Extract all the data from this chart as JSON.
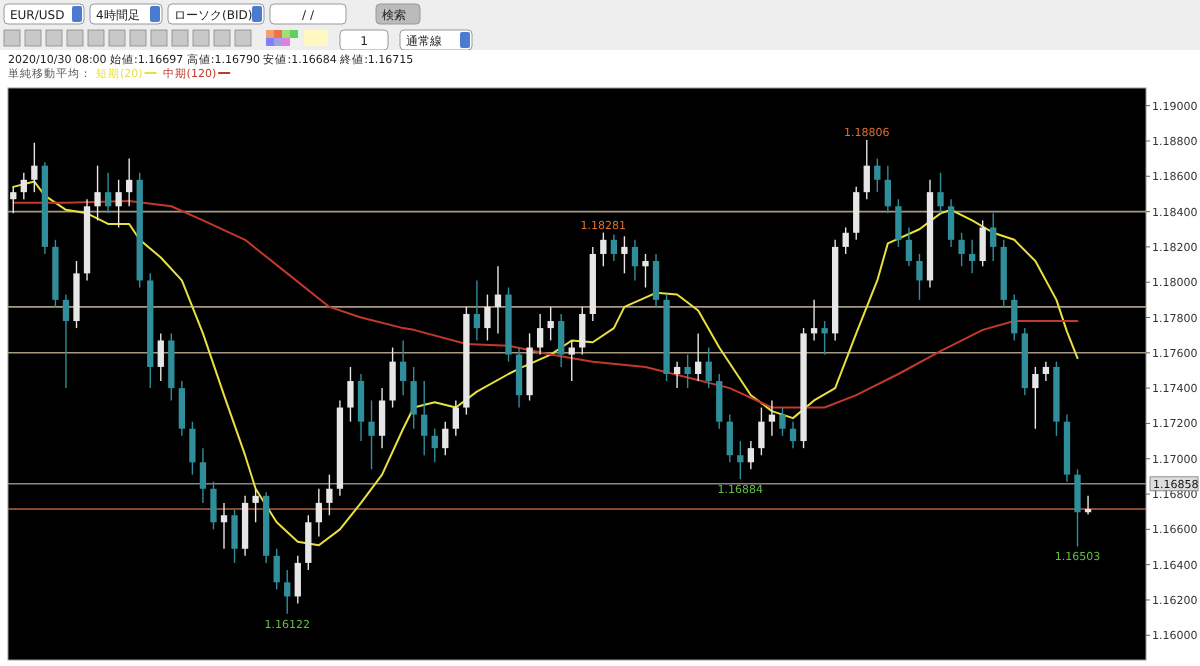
{
  "chart_data": {
    "type": "candlestick",
    "title": "2020/10/30 08:00 始値:1.16697 高値:1.16790 安値:1.16684 終値:1.16715",
    "subtitle": "単純移動平均：",
    "legend": "top left",
    "tick_labels": "y",
    "categories": [
      null,
      null,
      null,
      null,
      null,
      null,
      null,
      null,
      null,
      null,
      null,
      null,
      null,
      null,
      null,
      null,
      null,
      null,
      null,
      null,
      null,
      null,
      null,
      null,
      null,
      null,
      null,
      null,
      null,
      null,
      null,
      null,
      null,
      null,
      null,
      null,
      null,
      null,
      null,
      null,
      null,
      null,
      null,
      null,
      null,
      null,
      null,
      null,
      null,
      null,
      null,
      null,
      null,
      null,
      null,
      null,
      null,
      null,
      null,
      null,
      null,
      null,
      null,
      null,
      null,
      null,
      null,
      null,
      null,
      null,
      null,
      null,
      null,
      null,
      null,
      null,
      null,
      null,
      null,
      null,
      null,
      null,
      null,
      null,
      null,
      null,
      null,
      null,
      null,
      null,
      null,
      null,
      null,
      null,
      null,
      null,
      null,
      null,
      null,
      null,
      null,
      null,
      null,
      null,
      null,
      null,
      null,
      null
    ],
    "ohlc": [
      [
        1.1847,
        1.1854,
        1.1839,
        1.1851
      ],
      [
        1.1851,
        1.1862,
        1.1847,
        1.1858
      ],
      [
        1.1858,
        1.1879,
        1.1851,
        1.1866
      ],
      [
        1.1866,
        1.1868,
        1.1816,
        1.182
      ],
      [
        1.182,
        1.1824,
        1.1786,
        1.179
      ],
      [
        1.179,
        1.1793,
        1.174,
        1.1778
      ],
      [
        1.1778,
        1.1812,
        1.1774,
        1.1805
      ],
      [
        1.1805,
        1.1847,
        1.1801,
        1.1843
      ],
      [
        1.1843,
        1.1866,
        1.1835,
        1.1851
      ],
      [
        1.1851,
        1.1862,
        1.1839,
        1.1843
      ],
      [
        1.1843,
        1.1858,
        1.1831,
        1.1851
      ],
      [
        1.1851,
        1.187,
        1.1843,
        1.1858
      ],
      [
        1.1858,
        1.1862,
        1.1797,
        1.1801
      ],
      [
        1.1801,
        1.1805,
        1.174,
        1.1752
      ],
      [
        1.1752,
        1.1771,
        1.1744,
        1.1767
      ],
      [
        1.1767,
        1.1771,
        1.1733,
        1.174
      ],
      [
        1.174,
        1.1744,
        1.1713,
        1.1717
      ],
      [
        1.1717,
        1.1721,
        1.1691,
        1.1698
      ],
      [
        1.1698,
        1.1706,
        1.1675,
        1.1683
      ],
      [
        1.1683,
        1.1687,
        1.166,
        1.1664
      ],
      [
        1.1664,
        1.1675,
        1.1649,
        1.1668
      ],
      [
        1.1668,
        1.1671,
        1.1641,
        1.1649
      ],
      [
        1.1649,
        1.1679,
        1.1645,
        1.1675
      ],
      [
        1.1675,
        1.1683,
        1.1664,
        1.1679
      ],
      [
        1.1679,
        1.1681,
        1.1641,
        1.1645
      ],
      [
        1.1645,
        1.1649,
        1.1626,
        1.163
      ],
      [
        1.163,
        1.1637,
        1.16122,
        1.1622
      ],
      [
        1.1622,
        1.1645,
        1.1618,
        1.1641
      ],
      [
        1.1641,
        1.1668,
        1.1637,
        1.1664
      ],
      [
        1.1664,
        1.1683,
        1.1656,
        1.1675
      ],
      [
        1.1675,
        1.1691,
        1.1668,
        1.1683
      ],
      [
        1.1683,
        1.1733,
        1.1679,
        1.1729
      ],
      [
        1.1729,
        1.1752,
        1.1721,
        1.1744
      ],
      [
        1.1744,
        1.1748,
        1.171,
        1.1721
      ],
      [
        1.1721,
        1.1733,
        1.1694,
        1.1713
      ],
      [
        1.1713,
        1.174,
        1.1706,
        1.1733
      ],
      [
        1.1733,
        1.1763,
        1.1729,
        1.1755
      ],
      [
        1.1755,
        1.1767,
        1.1736,
        1.1744
      ],
      [
        1.1744,
        1.1752,
        1.1717,
        1.1725
      ],
      [
        1.1725,
        1.1744,
        1.1702,
        1.1713
      ],
      [
        1.1713,
        1.1717,
        1.1698,
        1.1706
      ],
      [
        1.1706,
        1.1721,
        1.1702,
        1.1717
      ],
      [
        1.1717,
        1.1733,
        1.1713,
        1.1729
      ],
      [
        1.1729,
        1.1786,
        1.1725,
        1.1782
      ],
      [
        1.1782,
        1.1801,
        1.1767,
        1.1774
      ],
      [
        1.1774,
        1.1793,
        1.1767,
        1.1786
      ],
      [
        1.1786,
        1.1809,
        1.1771,
        1.1793
      ],
      [
        1.1793,
        1.1797,
        1.1755,
        1.1759
      ],
      [
        1.1759,
        1.1763,
        1.1729,
        1.1736
      ],
      [
        1.1736,
        1.1771,
        1.1733,
        1.1763
      ],
      [
        1.1763,
        1.1782,
        1.1759,
        1.1774
      ],
      [
        1.1774,
        1.1786,
        1.1767,
        1.1778
      ],
      [
        1.1778,
        1.1782,
        1.1752,
        1.1759
      ],
      [
        1.1759,
        1.1767,
        1.1744,
        1.1763
      ],
      [
        1.1763,
        1.1786,
        1.1759,
        1.1782
      ],
      [
        1.1782,
        1.182,
        1.1778,
        1.1816
      ],
      [
        1.1816,
        1.18281,
        1.1809,
        1.1824
      ],
      [
        1.1824,
        1.1827,
        1.1812,
        1.1816
      ],
      [
        1.1816,
        1.1826,
        1.1805,
        1.182
      ],
      [
        1.182,
        1.1824,
        1.1801,
        1.1809
      ],
      [
        1.1809,
        1.1816,
        1.1797,
        1.1812
      ],
      [
        1.1812,
        1.1816,
        1.1786,
        1.179
      ],
      [
        1.179,
        1.1793,
        1.1744,
        1.1748
      ],
      [
        1.1748,
        1.1755,
        1.174,
        1.1752
      ],
      [
        1.1752,
        1.1759,
        1.174,
        1.1748
      ],
      [
        1.1748,
        1.1771,
        1.1744,
        1.1755
      ],
      [
        1.1755,
        1.1763,
        1.174,
        1.1744
      ],
      [
        1.1744,
        1.1748,
        1.1717,
        1.1721
      ],
      [
        1.1721,
        1.1725,
        1.1698,
        1.1702
      ],
      [
        1.1702,
        1.171,
        1.16884,
        1.1698
      ],
      [
        1.1698,
        1.171,
        1.1694,
        1.1706
      ],
      [
        1.1706,
        1.1729,
        1.1702,
        1.1721
      ],
      [
        1.1721,
        1.1733,
        1.1713,
        1.1725
      ],
      [
        1.1725,
        1.1729,
        1.1713,
        1.1717
      ],
      [
        1.1717,
        1.1721,
        1.1706,
        1.171
      ],
      [
        1.171,
        1.1774,
        1.1706,
        1.1771
      ],
      [
        1.1771,
        1.179,
        1.1767,
        1.1774
      ],
      [
        1.1774,
        1.1778,
        1.1759,
        1.1771
      ],
      [
        1.1771,
        1.1824,
        1.1767,
        1.182
      ],
      [
        1.182,
        1.1831,
        1.1816,
        1.1828
      ],
      [
        1.1828,
        1.1854,
        1.1824,
        1.1851
      ],
      [
        1.1851,
        1.18806,
        1.1847,
        1.1866
      ],
      [
        1.1866,
        1.187,
        1.1851,
        1.1858
      ],
      [
        1.1858,
        1.1866,
        1.1839,
        1.1843
      ],
      [
        1.1843,
        1.1847,
        1.182,
        1.1824
      ],
      [
        1.1824,
        1.1831,
        1.1809,
        1.1812
      ],
      [
        1.1812,
        1.1816,
        1.179,
        1.1801
      ],
      [
        1.1801,
        1.1858,
        1.1797,
        1.1851
      ],
      [
        1.1851,
        1.1862,
        1.1839,
        1.1843
      ],
      [
        1.1843,
        1.1847,
        1.182,
        1.1824
      ],
      [
        1.1824,
        1.1828,
        1.1809,
        1.1816
      ],
      [
        1.1816,
        1.1824,
        1.1805,
        1.1812
      ],
      [
        1.1812,
        1.1835,
        1.1809,
        1.1831
      ],
      [
        1.1831,
        1.1839,
        1.1812,
        1.182
      ],
      [
        1.182,
        1.1824,
        1.1786,
        1.179
      ],
      [
        1.179,
        1.1793,
        1.1767,
        1.1771
      ],
      [
        1.1771,
        1.1774,
        1.1736,
        1.174
      ],
      [
        1.174,
        1.1752,
        1.1717,
        1.1748
      ],
      [
        1.1748,
        1.1755,
        1.1744,
        1.1752
      ],
      [
        1.1752,
        1.1755,
        1.1713,
        1.1721
      ],
      [
        1.1721,
        1.1725,
        1.1687,
        1.1691
      ],
      [
        1.1691,
        1.1694,
        1.16503,
        1.16697
      ],
      [
        1.16697,
        1.1679,
        1.16684,
        1.16715
      ],
      null,
      null,
      null,
      null,
      null
    ],
    "series": [
      {
        "name": "短期(20)",
        "type": "line",
        "color": "#e8e040",
        "values": [
          1.1854,
          null,
          1.1857,
          1.1849,
          null,
          1.1841,
          null,
          1.1839,
          null,
          1.1833,
          null,
          1.1833,
          1.1824,
          null,
          1.1814,
          null,
          1.1801,
          null,
          1.1771,
          null,
          1.1736,
          null,
          1.1702,
          1.1683,
          null,
          1.1664,
          null,
          1.1653,
          null,
          1.1651,
          null,
          1.166,
          null,
          1.1675,
          null,
          1.1691,
          null,
          1.1717,
          1.1729,
          null,
          1.1732,
          null,
          1.1729,
          null,
          1.1738,
          null,
          null,
          1.1748,
          1.1751,
          null,
          null,
          1.1759,
          null,
          1.1767,
          null,
          1.1766,
          null,
          1.1774,
          1.1786,
          null,
          null,
          1.1794,
          null,
          1.1793,
          null,
          1.1784,
          null,
          1.1763,
          null,
          null,
          1.1736,
          null,
          1.1727,
          null,
          1.1723,
          null,
          1.1733,
          null,
          1.174,
          null,
          1.1771,
          null,
          1.1801,
          1.1822,
          null,
          null,
          1.183,
          null,
          1.1839,
          1.1841,
          null,
          1.1835,
          null,
          1.1828,
          null,
          1.1824,
          null,
          1.1812,
          null,
          1.179,
          1.1772,
          1.1757,
          null,
          null,
          null,
          null,
          null,
          null
        ]
      },
      {
        "name": "中期(120)",
        "type": "line",
        "color": "#c0392b",
        "values": [
          1.1845,
          null,
          null,
          null,
          null,
          1.1845,
          null,
          null,
          null,
          null,
          null,
          1.1846,
          null,
          null,
          null,
          1.1843,
          null,
          null,
          1.1835,
          null,
          null,
          null,
          1.1824,
          null,
          null,
          null,
          1.1805,
          null,
          null,
          null,
          1.1786,
          null,
          null,
          1.178,
          null,
          null,
          null,
          1.1774,
          1.1773,
          null,
          null,
          null,
          null,
          1.1765,
          null,
          null,
          null,
          1.1764,
          null,
          null,
          null,
          1.1759,
          null,
          null,
          null,
          1.1755,
          null,
          null,
          null,
          null,
          1.1752,
          null,
          null,
          null,
          1.1746,
          null,
          null,
          null,
          1.174,
          null,
          null,
          null,
          1.1729,
          null,
          null,
          null,
          null,
          1.1729,
          null,
          null,
          1.1736,
          null,
          null,
          null,
          1.1748,
          null,
          null,
          null,
          1.1761,
          null,
          null,
          null,
          1.1773,
          null,
          null,
          1.1778,
          null,
          null,
          1.1778,
          null,
          null,
          1.1778,
          null,
          null,
          null,
          null,
          null,
          null
        ]
      }
    ],
    "ylim": [
      1.1586,
      1.191
    ],
    "yticks": [
      {
        "value": 1.16,
        "label": "1.16000"
      },
      {
        "value": 1.162,
        "label": "1.16200"
      },
      {
        "value": 1.164,
        "label": "1.16400"
      },
      {
        "value": 1.166,
        "label": "1.16600"
      },
      {
        "value": 1.168,
        "label": "1.16800"
      },
      {
        "value": 1.17,
        "label": "1.17000"
      },
      {
        "value": 1.172,
        "label": "1.17200"
      },
      {
        "value": 1.174,
        "label": "1.17400"
      },
      {
        "value": 1.176,
        "label": "1.17600"
      },
      {
        "value": 1.178,
        "label": "1.17800"
      },
      {
        "value": 1.18,
        "label": "1.18000"
      },
      {
        "value": 1.182,
        "label": "1.18200"
      },
      {
        "value": 1.184,
        "label": "1.18400"
      },
      {
        "value": 1.186,
        "label": "1.18600"
      },
      {
        "value": 1.188,
        "label": "1.18800"
      },
      {
        "value": 1.19,
        "label": "1.19000"
      }
    ],
    "ref_lines": [
      {
        "axis": "y",
        "value": 1.184,
        "color": "#a89a80"
      },
      {
        "axis": "y",
        "value": 1.1786,
        "color": "#a89a80"
      },
      {
        "axis": "y",
        "value": 1.176,
        "color": "#a89a80"
      },
      {
        "axis": "y",
        "value": 1.16858,
        "label": "1.16858",
        "color": "#888888"
      },
      {
        "axis": "y",
        "value": 1.16715,
        "color": "#b0653a"
      }
    ],
    "annotations": [
      "EUR/USD",
      "4時間足",
      "ローソク(BID)",
      "/ /",
      "1",
      "通常線",
      "検索",
      {
        "text": "1.18806",
        "y": 1.18806
      },
      {
        "text": "1.18281",
        "y": 1.18281
      },
      {
        "text": "1.16884",
        "y": 1.16884
      },
      {
        "text": "1.16122",
        "y": 1.16122
      },
      {
        "text": "1.16503",
        "y": 1.16503
      }
    ]
  }
}
